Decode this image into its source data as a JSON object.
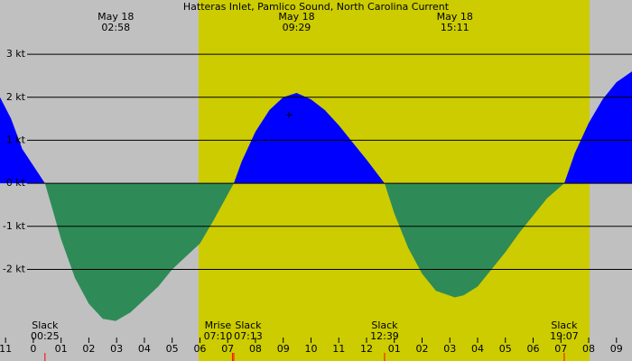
{
  "chart_data": {
    "type": "area",
    "title": "Hatteras Inlet, Pamlico Sound, North Carolina Current",
    "xlim": [
      -1.2,
      21.56
    ],
    "ylim": [
      -3.71,
      4.26
    ],
    "yticks": [
      {
        "value": 3,
        "label": "3 kt"
      },
      {
        "value": 2,
        "label": "2 kt"
      },
      {
        "value": 1,
        "label": "1 kt"
      },
      {
        "value": 0,
        "label": "0 kt"
      },
      {
        "value": -1,
        "label": "-1 kt"
      },
      {
        "value": -2,
        "label": "-2 kt"
      }
    ],
    "xticks": [
      {
        "value": -1,
        "label": "11"
      },
      0,
      {
        "value": 1,
        "label": "01"
      },
      {
        "value": 2,
        "label": "02"
      },
      {
        "value": 3,
        "label": "03"
      },
      {
        "value": 4,
        "label": "04"
      },
      {
        "value": 5,
        "label": "05"
      },
      {
        "value": 6,
        "label": "06"
      },
      {
        "value": 7,
        "label": "07"
      },
      {
        "value": 8,
        "label": "08"
      },
      {
        "value": 9,
        "label": "09"
      },
      10,
      11,
      12,
      {
        "value": 13,
        "label": "01"
      },
      {
        "value": 14,
        "label": "02"
      },
      {
        "value": 15,
        "label": "03"
      },
      {
        "value": 16,
        "label": "04"
      },
      {
        "value": 17,
        "label": "05"
      },
      {
        "value": 18,
        "label": "06"
      },
      {
        "value": 19,
        "label": "07"
      },
      {
        "value": 20,
        "label": "08"
      },
      {
        "value": 21,
        "label": "09"
      }
    ],
    "background_color": "#c0c0c0",
    "daylight": [
      5.95,
      20.03
    ],
    "daylight_color": "#cccc00",
    "flood_color": "#0000ff",
    "ebb_color": "#2e8b57",
    "segments": [
      {
        "x": [
          -1.2,
          -0.8,
          -0.4,
          0.42
        ],
        "values": [
          2.0,
          1.5,
          0.8,
          0
        ]
      },
      {
        "x": [
          0.42,
          1,
          1.5,
          2,
          2.5,
          2.97,
          3.5,
          4,
          4.5,
          5,
          5.5,
          6,
          6.5,
          7.22
        ],
        "values": [
          0,
          -1.3,
          -2.2,
          -2.8,
          -3.15,
          -3.2,
          -3.0,
          -2.7,
          -2.4,
          -2.0,
          -1.7,
          -1.4,
          -0.85,
          0
        ]
      },
      {
        "x": [
          7.22,
          7.5,
          8,
          8.5,
          9,
          9.48,
          10,
          10.5,
          11,
          11.5,
          12,
          12.65
        ],
        "values": [
          0,
          0.5,
          1.2,
          1.7,
          2.0,
          2.1,
          1.95,
          1.7,
          1.35,
          0.95,
          0.55,
          0
        ]
      },
      {
        "x": [
          12.65,
          13,
          13.5,
          14,
          14.5,
          15.18,
          15.5,
          16,
          16.5,
          17,
          17.5,
          18,
          18.5,
          19.12
        ],
        "values": [
          0,
          -0.7,
          -1.5,
          -2.1,
          -2.5,
          -2.65,
          -2.6,
          -2.4,
          -2.0,
          -1.6,
          -1.15,
          -0.75,
          -0.35,
          0
        ]
      },
      {
        "x": [
          19.12,
          19.5,
          20,
          20.5,
          21,
          21.56
        ],
        "values": [
          0,
          0.7,
          1.4,
          1.95,
          2.35,
          2.6
        ]
      }
    ],
    "top_labels": [
      {
        "t": 2.97,
        "date": "May 18",
        "time": "02:58"
      },
      {
        "t": 9.48,
        "date": "May 18",
        "time": "09:29"
      },
      {
        "t": 15.18,
        "date": "May 18",
        "time": "15:11"
      }
    ],
    "bottom_labels": [
      {
        "t": 0.42,
        "event": "Slack",
        "time": "00:25"
      },
      {
        "t": 7.17,
        "event": "Mrise",
        "time": "07:10"
      },
      {
        "t": 7.22,
        "event": "Slack",
        "time": "07:13"
      },
      {
        "t": 12.65,
        "event": "Slack",
        "time": "12:39"
      },
      {
        "t": 19.12,
        "event": "Slack",
        "time": "19:07"
      }
    ]
  }
}
